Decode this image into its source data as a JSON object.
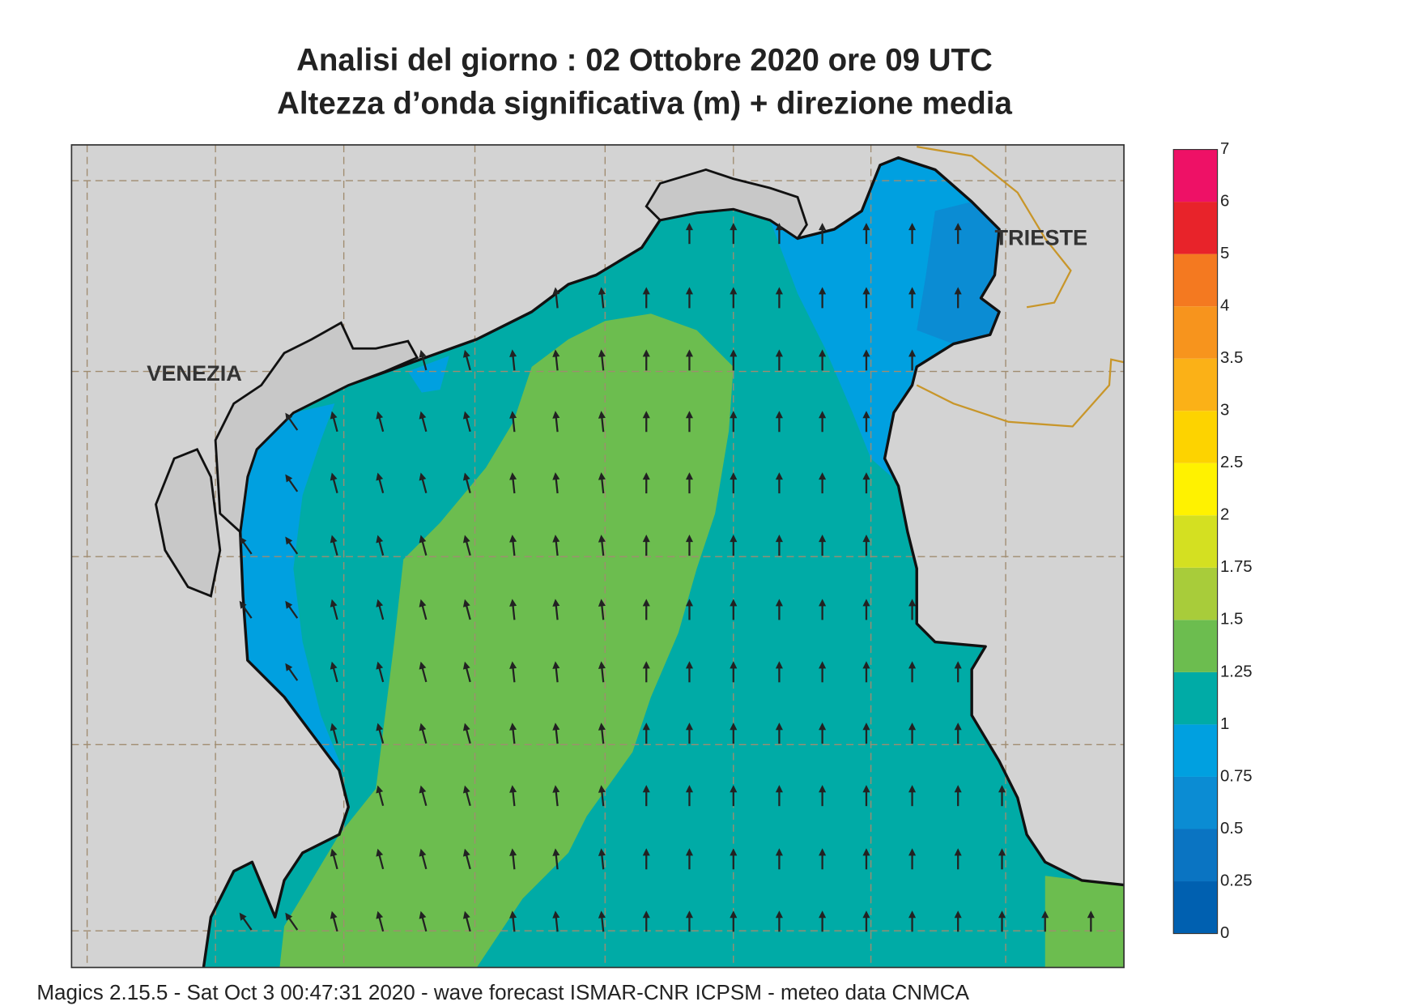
{
  "title": [
    "Analisi del giorno :  02  Ottobre  2020   ore 09 UTC",
    "Altezza d’onda significativa (m) + direzione media"
  ],
  "places": [
    "VENEZIA",
    "TRIESTE"
  ],
  "colorbar": {
    "levels": [
      0,
      0.25,
      0.5,
      0.75,
      1,
      1.25,
      1.5,
      1.75,
      2,
      2.5,
      3,
      3.5,
      4,
      5,
      6,
      7
    ],
    "colors": [
      "#0060b0",
      "#0a74c2",
      "#0b8cd3",
      "#00a0e0",
      "#00aba6",
      "#6cbd4f",
      "#a8cc3a",
      "#d4e021",
      "#fff200",
      "#fdd300",
      "#fbb117",
      "#f7941d",
      "#f47920",
      "#e8232a",
      "#ee1166"
    ]
  },
  "footer": "Magics 2.15.5 - Sat Oct  3 00:47:31 2020 - wave forecast  ISMAR-CNR  ICPSM - meteo data    CNMCA"
}
